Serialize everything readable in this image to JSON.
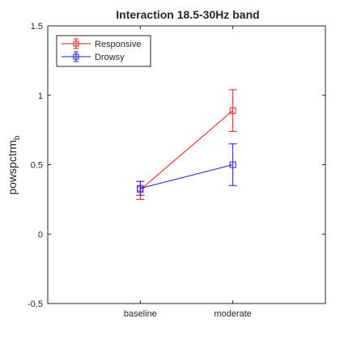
{
  "chart_data": {
    "type": "line",
    "title": "Interaction 18.5-30Hz band",
    "xlabel": "",
    "ylabel_main": "powspctrm",
    "ylabel_sub": "b",
    "categories": [
      "baseline",
      "moderate"
    ],
    "ylim": [
      -0.5,
      1.5
    ],
    "yticks": [
      -0.5,
      0,
      0.5,
      1,
      1.5
    ],
    "ytick_labels": [
      "-0.5",
      "0",
      "0.5",
      "1",
      "1.5"
    ],
    "grid": false,
    "legend_position": "top-left",
    "series": [
      {
        "name": "Responsive",
        "color": "#dd1c1c",
        "marker": "square",
        "values": [
          0.32,
          0.89
        ],
        "error_low": [
          0.25,
          0.74
        ],
        "error_high": [
          0.38,
          1.04
        ]
      },
      {
        "name": "Drowsy",
        "color": "#1c1cc8",
        "marker": "square",
        "values": [
          0.33,
          0.5
        ],
        "error_low": [
          0.28,
          0.35
        ],
        "error_high": [
          0.38,
          0.65
        ]
      }
    ]
  }
}
